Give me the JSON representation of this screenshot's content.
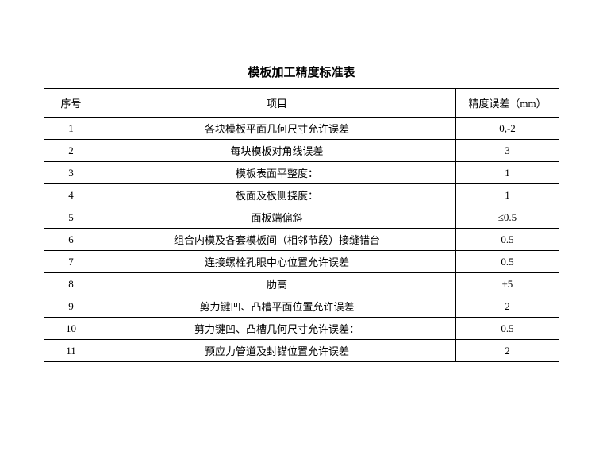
{
  "title": "模板加工精度标准表",
  "table": {
    "columns": [
      {
        "label": "序号",
        "class": "col-seq"
      },
      {
        "label": "项目",
        "class": "col-item"
      },
      {
        "label": "精度误差（mm）",
        "class": "col-precision"
      }
    ],
    "rows": [
      {
        "seq": "1",
        "item": "各块模板平面几何尺寸允许误差",
        "precision": "0,-2"
      },
      {
        "seq": "2",
        "item": "每块模板对角线误差",
        "precision": "3"
      },
      {
        "seq": "3",
        "item": "模板表面平整度：",
        "precision": "1"
      },
      {
        "seq": "4",
        "item": "板面及板侧挠度：",
        "precision": "1"
      },
      {
        "seq": "5",
        "item": "面板端偏斜",
        "precision": "≤0.5"
      },
      {
        "seq": "6",
        "item": "组合内模及各套模板间（相邻节段）接缝错台",
        "precision": "0.5"
      },
      {
        "seq": "7",
        "item": "连接螺栓孔眼中心位置允许误差",
        "precision": "0.5"
      },
      {
        "seq": "8",
        "item": "肋高",
        "precision": "±5"
      },
      {
        "seq": "9",
        "item": "剪力键凹、凸槽平面位置允许误差",
        "precision": "2"
      },
      {
        "seq": "10",
        "item": "剪力键凹、凸槽几何尺寸允许误差：",
        "precision": "0.5"
      },
      {
        "seq": "11",
        "item": "预应力管道及封锚位置允许误差",
        "precision": "2"
      }
    ]
  },
  "styling": {
    "background_color": "#ffffff",
    "border_color": "#000000",
    "text_color": "#000000",
    "title_fontsize": 15,
    "cell_fontsize": 13,
    "header_row_height": 36,
    "data_row_height": 26,
    "column_widths": {
      "seq": 68,
      "precision": 130
    }
  }
}
